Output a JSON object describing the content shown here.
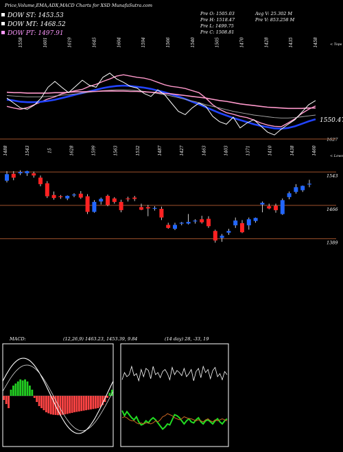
{
  "header": {
    "title": "Price,Volume,EMA,ADX,MACD Charts for XSD MunafaSutra.com",
    "legend": [
      {
        "label": "DOW ST: 1453.53",
        "color": "#ffffff"
      },
      {
        "label": "DOW MT: 1468.52",
        "color": "#ffffff"
      },
      {
        "label": "DOW PT: 1497.91",
        "color": "#ff99ff"
      }
    ],
    "stats_left": [
      "Pre O: 1505.03",
      "Pre H: 1518.47",
      "Pre L: 1499.75",
      "Pre C: 1508.81"
    ],
    "stats_right": [
      "Avg V: 25.302 M",
      "Pre V: 853.258 M"
    ]
  },
  "colors": {
    "background": "#000000",
    "level_line": "#a0522d",
    "bull": "#2266ff",
    "bear": "#ff2222",
    "ema_short": "#ffffff",
    "ema_mid": "#2244ff",
    "ema_long": "#ff99cc",
    "macd_pos": "#22cc22",
    "macd_neg": "#ff4444",
    "adx_di_plus": "#22dd22",
    "adx_di_minus": "#cc6622"
  },
  "chart_data": [
    {
      "type": "line",
      "panel": "price-ema",
      "top_tick_labels": [
        "1558",
        "1601",
        "1619",
        "1645",
        "1604",
        "1594",
        "1566",
        "1540",
        "1505",
        "1470",
        "1428",
        "1435",
        "1458"
      ],
      "top_right_label": "< Tops",
      "bottom_tick_labels": [
        "1488",
        "1543",
        "15",
        "1628",
        "1599",
        "1563",
        "1532",
        "1487",
        "1427",
        "1463",
        "1403",
        "1371",
        "1410",
        "1438",
        "1460"
      ],
      "bottom_right_label": "< Lows",
      "levels": [
        {
          "value": 1550.47,
          "label": "1550.47",
          "color": "#ffffff"
        },
        {
          "value": 1627,
          "label": "1627",
          "color": "#cccccc"
        }
      ],
      "series": [
        {
          "values": [
            1552,
            1548,
            1545,
            1549,
            1556,
            1563,
            1570,
            1575,
            1582,
            1586,
            1590,
            1593,
            1600,
            1605,
            1612,
            1618,
            1625,
            1628,
            1625,
            1622,
            1620,
            1616,
            1610,
            1604,
            1600,
            1598,
            1595,
            1590,
            1585,
            1572,
            1556,
            1545,
            1537,
            1533,
            1528,
            1525,
            1519,
            1512,
            1507,
            1504,
            1503,
            1512,
            1522,
            1535,
            1545,
            1553
          ]
        },
        {
          "values": [
            1568,
            1566,
            1563,
            1562,
            1562,
            1563,
            1565,
            1568,
            1572,
            1576,
            1580,
            1584,
            1588,
            1592,
            1596,
            1599,
            1601,
            1602,
            1601,
            1599,
            1597,
            1594,
            1590,
            1586,
            1581,
            1576,
            1570,
            1563,
            1557,
            1550,
            1543,
            1536,
            1530,
            1524,
            1519,
            1514,
            1509,
            1505,
            1502,
            1499,
            1498,
            1500,
            1504,
            1510,
            1516,
            1521
          ]
        },
        {
          "values": [
            1578,
            1577,
            1576,
            1575,
            1575,
            1575,
            1576,
            1577,
            1579,
            1580,
            1582,
            1584,
            1586,
            1588,
            1590,
            1591,
            1592,
            1592,
            1591,
            1590,
            1588,
            1586,
            1583,
            1580,
            1577,
            1573,
            1569,
            1565,
            1561,
            1556,
            1552,
            1548,
            1544,
            1540,
            1537,
            1534,
            1531,
            1529,
            1527,
            1525,
            1524,
            1524,
            1525,
            1527,
            1529,
            1531
          ]
        },
        {
          "values": [
            1586,
            1585,
            1585,
            1584,
            1584,
            1584,
            1584,
            1585,
            1585,
            1586,
            1587,
            1587,
            1588,
            1588,
            1589,
            1589,
            1589,
            1589,
            1588,
            1588,
            1587,
            1586,
            1585,
            1583,
            1582,
            1580,
            1578,
            1576,
            1574,
            1572,
            1569,
            1566,
            1564,
            1561,
            1558,
            1556,
            1554,
            1552,
            1550,
            1549,
            1548,
            1547,
            1547,
            1547,
            1548,
            1548
          ]
        },
        {
          "values": [
            1572,
            1560,
            1548,
            1545,
            1555,
            1572,
            1598,
            1612,
            1598,
            1585,
            1600,
            1615,
            1603,
            1598,
            1622,
            1632,
            1618,
            1610,
            1600,
            1596,
            1583,
            1576,
            1592,
            1580,
            1560,
            1540,
            1532,
            1548,
            1560,
            1552,
            1528,
            1515,
            1509,
            1526,
            1500,
            1512,
            1520,
            1505,
            1490,
            1483,
            1497,
            1509,
            1520,
            1538,
            1556,
            1566
          ]
        }
      ]
    },
    {
      "type": "candlestick",
      "panel": "price",
      "levels": [
        {
          "value": 1543,
          "label": "1543"
        },
        {
          "value": 1466,
          "label": "1466"
        },
        {
          "value": 1389,
          "label": "1389"
        }
      ],
      "candles": [
        {
          "o": 1523,
          "h": 1545,
          "l": 1519,
          "c": 1538
        },
        {
          "o": 1539,
          "h": 1545,
          "l": 1524,
          "c": 1530
        },
        {
          "o": 1540,
          "h": 1547,
          "l": 1536,
          "c": 1543
        },
        {
          "o": 1540,
          "h": 1546,
          "l": 1534,
          "c": 1545
        },
        {
          "o": 1540,
          "h": 1544,
          "l": 1530,
          "c": 1535
        },
        {
          "o": 1530,
          "h": 1535,
          "l": 1510,
          "c": 1515
        },
        {
          "o": 1517,
          "h": 1522,
          "l": 1483,
          "c": 1487
        },
        {
          "o": 1490,
          "h": 1498,
          "l": 1479,
          "c": 1483
        },
        {
          "o": 1487,
          "h": 1490,
          "l": 1481,
          "c": 1485
        },
        {
          "o": 1482,
          "h": 1489,
          "l": 1478,
          "c": 1488
        },
        {
          "o": 1489,
          "h": 1494,
          "l": 1485,
          "c": 1491
        },
        {
          "o": 1493,
          "h": 1499,
          "l": 1481,
          "c": 1484
        },
        {
          "o": 1487,
          "h": 1492,
          "l": 1446,
          "c": 1451
        },
        {
          "o": 1451,
          "h": 1478,
          "l": 1449,
          "c": 1474
        },
        {
          "o": 1475,
          "h": 1484,
          "l": 1468,
          "c": 1481
        },
        {
          "o": 1488,
          "h": 1491,
          "l": 1464,
          "c": 1467
        },
        {
          "o": 1482,
          "h": 1485,
          "l": 1470,
          "c": 1474
        },
        {
          "o": 1474,
          "h": 1479,
          "l": 1450,
          "c": 1455
        },
        {
          "o": 1482,
          "h": 1486,
          "l": 1475,
          "c": 1480
        },
        {
          "o": 1484,
          "h": 1488,
          "l": 1476,
          "c": 1481
        },
        {
          "o": 1462,
          "h": 1470,
          "l": 1455,
          "c": 1456
        },
        {
          "o": 1462,
          "h": 1467,
          "l": 1441,
          "c": 1459
        },
        {
          "o": 1459,
          "h": 1464,
          "l": 1454,
          "c": 1460
        },
        {
          "o": 1458,
          "h": 1463,
          "l": 1432,
          "c": 1438
        },
        {
          "o": 1421,
          "h": 1426,
          "l": 1412,
          "c": 1414
        },
        {
          "o": 1412,
          "h": 1426,
          "l": 1409,
          "c": 1421
        },
        {
          "o": 1424,
          "h": 1428,
          "l": 1420,
          "c": 1426
        },
        {
          "o": 1424,
          "h": 1446,
          "l": 1422,
          "c": 1428
        },
        {
          "o": 1429,
          "h": 1434,
          "l": 1424,
          "c": 1431
        },
        {
          "o": 1434,
          "h": 1442,
          "l": 1424,
          "c": 1427
        },
        {
          "o": 1435,
          "h": 1441,
          "l": 1414,
          "c": 1418
        },
        {
          "o": 1407,
          "h": 1410,
          "l": 1380,
          "c": 1385
        },
        {
          "o": 1391,
          "h": 1400,
          "l": 1382,
          "c": 1396
        },
        {
          "o": 1403,
          "h": 1412,
          "l": 1398,
          "c": 1407
        },
        {
          "o": 1420,
          "h": 1438,
          "l": 1414,
          "c": 1431
        },
        {
          "o": 1425,
          "h": 1432,
          "l": 1402,
          "c": 1404
        },
        {
          "o": 1420,
          "h": 1438,
          "l": 1410,
          "c": 1434
        },
        {
          "o": 1430,
          "h": 1438,
          "l": 1426,
          "c": 1437
        },
        {
          "o": 1468,
          "h": 1475,
          "l": 1450,
          "c": 1472
        },
        {
          "o": 1464,
          "h": 1470,
          "l": 1457,
          "c": 1459
        },
        {
          "o": 1465,
          "h": 1470,
          "l": 1449,
          "c": 1455
        },
        {
          "o": 1446,
          "h": 1482,
          "l": 1444,
          "c": 1478
        },
        {
          "o": 1485,
          "h": 1498,
          "l": 1480,
          "c": 1494
        },
        {
          "o": 1497,
          "h": 1515,
          "l": 1493,
          "c": 1508
        },
        {
          "o": 1501,
          "h": 1512,
          "l": 1497,
          "c": 1511
        },
        {
          "o": 1516,
          "h": 1525,
          "l": 1508,
          "c": 1516
        }
      ]
    },
    {
      "type": "bar",
      "panel": "macd",
      "label": "MACD:",
      "readout": "(12,26,9) 1463.23,  1453.39, 9.84",
      "values": [
        -0.2,
        -0.4,
        -0.6,
        0.3,
        0.5,
        0.6,
        0.7,
        0.8,
        0.75,
        0.8,
        0.7,
        0.5,
        0.3,
        -0.1,
        -0.3,
        -0.5,
        -0.6,
        -0.7,
        -0.8,
        -0.85,
        -0.9,
        -0.92,
        -0.93,
        -0.94,
        -0.95,
        -0.92,
        -0.9,
        -0.88,
        -0.85,
        -0.83,
        -0.8,
        -0.78,
        -0.76,
        -0.74,
        -0.72,
        -0.7,
        -0.68,
        -0.66,
        -0.64,
        -0.62,
        -0.6,
        -0.55,
        -0.45,
        -0.3,
        -0.1,
        0.15,
        0.3
      ]
    },
    {
      "type": "line",
      "panel": "adx",
      "readout": "(14 day) 28, -33,  19",
      "series": [
        {
          "values": [
            6.5,
            7.2,
            6.8,
            7.0,
            7.8,
            6.9,
            7.1,
            6.4,
            7.5,
            6.8,
            7.6,
            7.4,
            6.6,
            7.8,
            7.0,
            7.2,
            6.7,
            7.3,
            7.5,
            7.1,
            6.5,
            7.7,
            7.0,
            7.4,
            7.2,
            6.9,
            7.6,
            6.8,
            7.1,
            7.5,
            6.4,
            7.3,
            7.6,
            6.7,
            7.8,
            7.2,
            7.5,
            6.6,
            7.4,
            7.7,
            6.8,
            7.1,
            6.5,
            7.3,
            7.0
          ]
        },
        {
          "values": [
            3.5,
            3.0,
            3.4,
            3.1,
            2.8,
            2.6,
            2.9,
            2.4,
            2.1,
            2.2,
            2.5,
            2.3,
            2.6,
            2.8,
            2.6,
            2.3,
            2.0,
            1.7,
            1.9,
            2.2,
            2.1,
            2.6,
            3.1,
            3.0,
            2.8,
            2.5,
            2.2,
            2.5,
            2.7,
            2.4,
            2.3,
            2.6,
            2.8,
            2.4,
            2.2,
            2.5,
            2.6,
            2.4,
            2.2,
            2.5,
            2.7,
            2.4,
            2.2,
            2.5,
            2.7
          ]
        },
        {
          "values": [
            2.8,
            2.9,
            2.8,
            2.6,
            2.5,
            2.5,
            2.3,
            2.2,
            2.3,
            2.2,
            2.3,
            2.3,
            2.2,
            2.3,
            2.5,
            2.4,
            2.6,
            2.9,
            3.0,
            3.2,
            3.1,
            3.0,
            2.8,
            2.7,
            2.6,
            2.7,
            2.9,
            2.8,
            2.7,
            2.7,
            2.6,
            2.5,
            2.6,
            2.5,
            2.4,
            2.6,
            2.7,
            2.5,
            2.4,
            2.6,
            2.5,
            2.6,
            2.7,
            2.6,
            2.5
          ]
        }
      ]
    }
  ]
}
